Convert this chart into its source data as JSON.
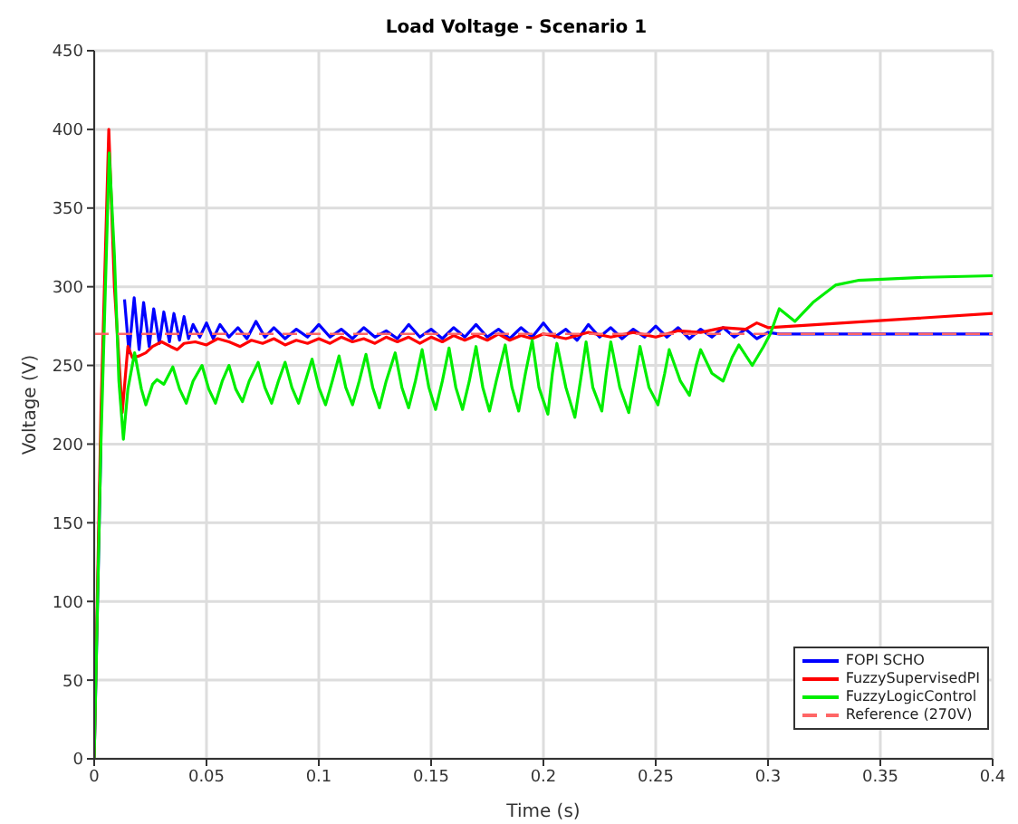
{
  "chart_data": {
    "type": "line",
    "title": "Load Voltage - Scenario 1",
    "xlabel": "Time (s)",
    "ylabel": "Voltage (V)",
    "xlim": [
      0,
      0.4
    ],
    "xticks": [
      0,
      0.05,
      0.1,
      0.15,
      0.2,
      0.25,
      0.3,
      0.35,
      0.4
    ],
    "ylim": [
      0,
      450
    ],
    "yticks": [
      0,
      50,
      100,
      150,
      200,
      250,
      300,
      350,
      400,
      450
    ],
    "grid": true,
    "legend": "bottom right",
    "marker": "none",
    "series": [
      {
        "name": "FOPI SCHO",
        "color": "#0000ff",
        "line_style": "solid",
        "x": [
          0,
          0.003,
          0.0065,
          0.009,
          0.011,
          0.0135,
          0.0155,
          0.0178,
          0.02,
          0.022,
          0.0245,
          0.0265,
          0.029,
          0.031,
          0.0335,
          0.0355,
          0.038,
          0.04,
          0.042,
          0.044,
          0.047,
          0.05,
          0.053,
          0.056,
          0.06,
          0.064,
          0.068,
          0.072,
          0.076,
          0.08,
          0.085,
          0.09,
          0.095,
          0.1,
          0.105,
          0.11,
          0.115,
          0.12,
          0.125,
          0.13,
          0.135,
          0.14,
          0.145,
          0.15,
          0.155,
          0.16,
          0.165,
          0.17,
          0.175,
          0.18,
          0.185,
          0.19,
          0.195,
          0.2,
          0.205,
          0.21,
          0.215,
          0.22,
          0.225,
          0.23,
          0.235,
          0.24,
          0.245,
          0.25,
          0.255,
          0.26,
          0.265,
          0.27,
          0.275,
          0.28,
          0.285,
          0.29,
          0.295,
          0.3,
          0.305,
          0.4
        ],
        "values": [
          0,
          200,
          null,
          null,
          null,
          292,
          258,
          293,
          260,
          290,
          262,
          286,
          264,
          284,
          265,
          283,
          266,
          281,
          267,
          276,
          268,
          277,
          267,
          276,
          268,
          274,
          267,
          278,
          268,
          274,
          267,
          273,
          268,
          276,
          268,
          273,
          267,
          274,
          268,
          272,
          267,
          276,
          268,
          273,
          267,
          274,
          268,
          276,
          268,
          273,
          267,
          274,
          268,
          277,
          268,
          273,
          266,
          276,
          268,
          274,
          267,
          273,
          268,
          275,
          268,
          274,
          267,
          273,
          268,
          274,
          268,
          273,
          267,
          271,
          270,
          270
        ]
      },
      {
        "name": "FuzzySupervisedPI",
        "color": "#ff0000",
        "line_style": "solid",
        "x": [
          0,
          0.003,
          0.0065,
          0.009,
          0.0125,
          0.015,
          0.017,
          0.02,
          0.023,
          0.026,
          0.03,
          0.034,
          0.037,
          0.04,
          0.045,
          0.05,
          0.055,
          0.06,
          0.065,
          0.07,
          0.075,
          0.08,
          0.085,
          0.09,
          0.095,
          0.1,
          0.105,
          0.11,
          0.115,
          0.12,
          0.125,
          0.13,
          0.135,
          0.14,
          0.145,
          0.15,
          0.155,
          0.16,
          0.165,
          0.17,
          0.175,
          0.18,
          0.185,
          0.19,
          0.195,
          0.2,
          0.21,
          0.22,
          0.23,
          0.24,
          0.25,
          0.26,
          0.27,
          0.28,
          0.29,
          0.295,
          0.3,
          0.4
        ],
        "values": [
          0,
          220,
          400,
          300,
          220,
          262,
          255,
          256,
          258,
          262,
          265,
          262,
          260,
          264,
          265,
          263,
          267,
          265,
          262,
          266,
          264,
          267,
          263,
          266,
          264,
          267,
          264,
          268,
          265,
          267,
          264,
          268,
          265,
          268,
          264,
          268,
          265,
          269,
          266,
          269,
          266,
          270,
          266,
          269,
          267,
          270,
          267,
          271,
          268,
          271,
          268,
          272,
          271,
          274,
          273,
          277,
          274,
          283
        ]
      },
      {
        "name": "FuzzyLogicControl",
        "color": "#00ee00",
        "line_style": "solid",
        "x": [
          0,
          0.003,
          0.0067,
          0.009,
          0.011,
          0.013,
          0.015,
          0.018,
          0.021,
          0.023,
          0.026,
          0.028,
          0.031,
          0.035,
          0.038,
          0.041,
          0.044,
          0.048,
          0.051,
          0.054,
          0.057,
          0.06,
          0.063,
          0.066,
          0.069,
          0.073,
          0.076,
          0.079,
          0.082,
          0.085,
          0.088,
          0.091,
          0.094,
          0.097,
          0.1,
          0.103,
          0.106,
          0.109,
          0.112,
          0.115,
          0.118,
          0.121,
          0.124,
          0.127,
          0.13,
          0.134,
          0.137,
          0.14,
          0.143,
          0.146,
          0.149,
          0.152,
          0.155,
          0.158,
          0.161,
          0.164,
          0.167,
          0.17,
          0.173,
          0.176,
          0.179,
          0.183,
          0.186,
          0.189,
          0.192,
          0.195,
          0.198,
          0.202,
          0.204,
          0.206,
          0.21,
          0.214,
          0.217,
          0.219,
          0.222,
          0.226,
          0.228,
          0.23,
          0.234,
          0.238,
          0.241,
          0.243,
          0.247,
          0.251,
          0.254,
          0.256,
          0.261,
          0.265,
          0.268,
          0.27,
          0.275,
          0.28,
          0.284,
          0.287,
          0.293,
          0.298,
          0.301,
          0.305,
          0.312,
          0.32,
          0.33,
          0.34,
          0.37,
          0.4
        ],
        "values": [
          0,
          200,
          385,
          320,
          240,
          203,
          235,
          258,
          235,
          225,
          238,
          241,
          238,
          249,
          235,
          226,
          240,
          250,
          235,
          226,
          240,
          250,
          235,
          227,
          240,
          252,
          236,
          226,
          240,
          252,
          236,
          226,
          240,
          254,
          236,
          225,
          240,
          256,
          236,
          225,
          240,
          257,
          236,
          223,
          240,
          258,
          236,
          223,
          240,
          260,
          236,
          222,
          240,
          261,
          236,
          222,
          240,
          262,
          236,
          221,
          240,
          263,
          236,
          221,
          245,
          266,
          236,
          219,
          245,
          264,
          236,
          217,
          245,
          265,
          236,
          221,
          245,
          265,
          236,
          220,
          245,
          262,
          236,
          225,
          245,
          260,
          240,
          231,
          250,
          260,
          245,
          240,
          255,
          263,
          250,
          262,
          270,
          286,
          278,
          290,
          301,
          304,
          306,
          307
        ]
      },
      {
        "name": "Reference (270V)",
        "color": "#ff6666",
        "line_style": "dashed",
        "x": [
          0,
          0.4
        ],
        "values": [
          270,
          270
        ]
      }
    ]
  }
}
